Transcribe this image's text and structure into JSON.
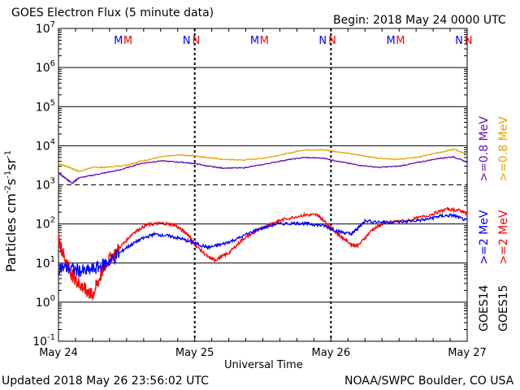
{
  "header": {
    "title": "GOES Electron Flux (5 minute data)",
    "begin": "Begin: 2018 May 24 0000 UTC"
  },
  "footer": {
    "updated": "Updated 2018 May 26 23:56:02 UTC",
    "source": "NOAA/SWPC Boulder, CO USA"
  },
  "colors": {
    "goes14_high": "#0000ff",
    "goes15_high": "#ff0000",
    "goes14_low": "#6a0dad",
    "goes15_low": "#e8a000",
    "marker_m14": "#0000ff",
    "marker_m15": "#ff0000",
    "marker_n14": "#0000ff",
    "marker_n15": "#ff0000",
    "grid": "#000000",
    "threshold": "#000000"
  },
  "chart_data": {
    "type": "line",
    "title": "GOES Electron Flux (5 minute data)",
    "xlabel": "Universal Time",
    "ylabel": "Particles cm^-2 s^-1 sr^-1",
    "yscale": "log",
    "ylim": [
      0.1,
      10000000
    ],
    "xlim": [
      0,
      3
    ],
    "x_units": "days since 2018 May 24 0000 UTC",
    "categories": [
      "May 24",
      "May 25",
      "May 26",
      "May 27"
    ],
    "ytick_exponents": [
      -1,
      0,
      1,
      2,
      3,
      4,
      5,
      6,
      7
    ],
    "threshold_lines": [
      1000
    ],
    "grid": true,
    "legend_placement": "right",
    "markers": [
      {
        "label": "M",
        "series": "GOES14",
        "x": 0.44
      },
      {
        "label": "M",
        "series": "GOES15",
        "x": 0.51
      },
      {
        "label": "N",
        "series": "GOES14",
        "x": 0.94
      },
      {
        "label": "N",
        "series": "GOES15",
        "x": 1.01
      },
      {
        "label": "M",
        "series": "GOES14",
        "x": 1.44
      },
      {
        "label": "M",
        "series": "GOES15",
        "x": 1.51
      },
      {
        "label": "N",
        "series": "GOES14",
        "x": 1.94
      },
      {
        "label": "N",
        "series": "GOES15",
        "x": 2.01
      },
      {
        "label": "M",
        "series": "GOES14",
        "x": 2.44
      },
      {
        "label": "M",
        "series": "GOES15",
        "x": 2.51
      },
      {
        "label": "N",
        "series": "GOES14",
        "x": 2.94
      },
      {
        "label": "N",
        "series": "GOES15",
        "x": 3.01
      }
    ],
    "series": [
      {
        "name": "GOES15 >=0.8 MeV",
        "points": [
          [
            0,
            3500
          ],
          [
            0.08,
            2800
          ],
          [
            0.15,
            2200
          ],
          [
            0.25,
            2800
          ],
          [
            0.35,
            2800
          ],
          [
            0.5,
            3200
          ],
          [
            0.6,
            4000
          ],
          [
            0.75,
            5200
          ],
          [
            0.9,
            5800
          ],
          [
            1.0,
            5500
          ],
          [
            1.1,
            5000
          ],
          [
            1.2,
            4500
          ],
          [
            1.35,
            4300
          ],
          [
            1.5,
            4800
          ],
          [
            1.65,
            6000
          ],
          [
            1.8,
            7800
          ],
          [
            1.95,
            7800
          ],
          [
            2.05,
            7000
          ],
          [
            2.2,
            5800
          ],
          [
            2.35,
            4800
          ],
          [
            2.5,
            4500
          ],
          [
            2.65,
            5200
          ],
          [
            2.8,
            6800
          ],
          [
            2.9,
            8200
          ],
          [
            3.0,
            6000
          ]
        ]
      },
      {
        "name": "GOES14 >=0.8 MeV",
        "points": [
          [
            0,
            2000
          ],
          [
            0.06,
            1400
          ],
          [
            0.1,
            1100
          ],
          [
            0.15,
            1500
          ],
          [
            0.3,
            1900
          ],
          [
            0.45,
            2400
          ],
          [
            0.6,
            3500
          ],
          [
            0.75,
            4100
          ],
          [
            0.9,
            3800
          ],
          [
            1.0,
            3500
          ],
          [
            1.1,
            3000
          ],
          [
            1.2,
            2700
          ],
          [
            1.35,
            2700
          ],
          [
            1.5,
            3300
          ],
          [
            1.65,
            4200
          ],
          [
            1.8,
            5000
          ],
          [
            1.95,
            4800
          ],
          [
            2.05,
            4000
          ],
          [
            2.2,
            3200
          ],
          [
            2.35,
            2800
          ],
          [
            2.5,
            3000
          ],
          [
            2.65,
            3800
          ],
          [
            2.8,
            4800
          ],
          [
            2.9,
            5200
          ],
          [
            3.0,
            3800
          ]
        ]
      },
      {
        "name": "GOES15 >=2 MeV",
        "points": [
          [
            0,
            40
          ],
          [
            0.05,
            12
          ],
          [
            0.1,
            5
          ],
          [
            0.15,
            3
          ],
          [
            0.2,
            2
          ],
          [
            0.25,
            1.5
          ],
          [
            0.3,
            4
          ],
          [
            0.35,
            10
          ],
          [
            0.45,
            25
          ],
          [
            0.55,
            60
          ],
          [
            0.65,
            95
          ],
          [
            0.75,
            105
          ],
          [
            0.85,
            95
          ],
          [
            0.95,
            55
          ],
          [
            1.0,
            30
          ],
          [
            1.1,
            14
          ],
          [
            1.15,
            12
          ],
          [
            1.25,
            18
          ],
          [
            1.35,
            40
          ],
          [
            1.45,
            65
          ],
          [
            1.55,
            100
          ],
          [
            1.65,
            130
          ],
          [
            1.8,
            170
          ],
          [
            1.9,
            170
          ],
          [
            1.95,
            120
          ],
          [
            2.05,
            55
          ],
          [
            2.15,
            30
          ],
          [
            2.2,
            28
          ],
          [
            2.3,
            70
          ],
          [
            2.4,
            110
          ],
          [
            2.55,
            120
          ],
          [
            2.7,
            160
          ],
          [
            2.85,
            240
          ],
          [
            2.95,
            220
          ],
          [
            3.0,
            180
          ]
        ]
      },
      {
        "name": "GOES14 >=2 MeV",
        "points": [
          [
            0,
            8
          ],
          [
            0.1,
            7
          ],
          [
            0.2,
            6
          ],
          [
            0.3,
            8
          ],
          [
            0.4,
            13
          ],
          [
            0.5,
            25
          ],
          [
            0.6,
            40
          ],
          [
            0.7,
            55
          ],
          [
            0.8,
            50
          ],
          [
            0.9,
            42
          ],
          [
            1.0,
            32
          ],
          [
            1.1,
            25
          ],
          [
            1.2,
            30
          ],
          [
            1.3,
            40
          ],
          [
            1.45,
            70
          ],
          [
            1.6,
            100
          ],
          [
            1.75,
            105
          ],
          [
            1.85,
            100
          ],
          [
            1.95,
            90
          ],
          [
            2.05,
            65
          ],
          [
            2.15,
            55
          ],
          [
            2.2,
            80
          ],
          [
            2.25,
            120
          ],
          [
            2.4,
            110
          ],
          [
            2.55,
            115
          ],
          [
            2.7,
            130
          ],
          [
            2.8,
            160
          ],
          [
            2.9,
            165
          ],
          [
            3.0,
            120
          ]
        ]
      }
    ]
  },
  "labels": {
    "ylabel_main": "Particles cm",
    "ylabel_sup1": "-2",
    "ylabel_mid": "s",
    "ylabel_sup2": "-1",
    "ylabel_mid2": "sr",
    "ylabel_sup3": "-1",
    "xlabel": "Universal Time",
    "legend": {
      "goes15_high_prefix": ">=2",
      "goes14_high_prefix": ">=2",
      "goes15_low_prefix": ">=0.8",
      "goes14_low_prefix": ">=0.8",
      "unit": "MeV",
      "goes14": "GOES14",
      "goes15": "GOES15"
    }
  }
}
